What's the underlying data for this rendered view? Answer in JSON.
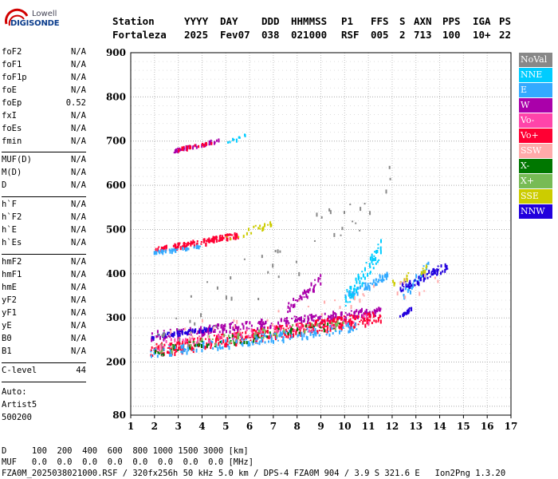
{
  "logo": {
    "line1": "Lowell",
    "line2": "DIGISONDE"
  },
  "header": {
    "labels": [
      "Station",
      "YYYY",
      "DAY",
      "DDD",
      "HHMMSS",
      "P1",
      "FFS",
      "S",
      "AXN",
      "PPS",
      "IGA",
      "PS"
    ],
    "values": [
      "Fortaleza",
      "2025",
      "Fev07",
      "038",
      "021000",
      "RSF",
      "005",
      "2",
      "713",
      "100",
      "10+",
      "22"
    ]
  },
  "params": {
    "group1": [
      {
        "k": "foF2",
        "v": "N/A"
      },
      {
        "k": "foF1",
        "v": "N/A"
      },
      {
        "k": "foF1p",
        "v": "N/A"
      },
      {
        "k": "foE",
        "v": "N/A"
      },
      {
        "k": "foEp",
        "v": "0.52"
      },
      {
        "k": "fxI",
        "v": "N/A"
      },
      {
        "k": "foEs",
        "v": "N/A"
      },
      {
        "k": "fmin",
        "v": "N/A"
      }
    ],
    "group2": [
      {
        "k": "MUF(D)",
        "v": "N/A"
      },
      {
        "k": "M(D)",
        "v": "N/A"
      },
      {
        "k": "D",
        "v": "N/A"
      }
    ],
    "group3": [
      {
        "k": "h`F",
        "v": "N/A"
      },
      {
        "k": "h`F2",
        "v": "N/A"
      },
      {
        "k": "h`E",
        "v": "N/A"
      },
      {
        "k": "h`Es",
        "v": "N/A"
      }
    ],
    "group4": [
      {
        "k": "hmF2",
        "v": "N/A"
      },
      {
        "k": "hmF1",
        "v": "N/A"
      },
      {
        "k": "hmE",
        "v": "N/A"
      },
      {
        "k": "yF2",
        "v": "N/A"
      },
      {
        "k": "yF1",
        "v": "N/A"
      },
      {
        "k": "yE",
        "v": "N/A"
      },
      {
        "k": "B0",
        "v": "N/A"
      },
      {
        "k": "B1",
        "v": "N/A"
      }
    ],
    "clevel": {
      "k": "C-level",
      "v": "44"
    }
  },
  "auto": {
    "l1": "Auto:",
    "l2": "Artist5",
    "l3": "500200"
  },
  "legend": [
    {
      "label": "NoVal",
      "color": "#888888"
    },
    {
      "label": "NNE",
      "color": "#00ccff"
    },
    {
      "label": "E",
      "color": "#33aaff"
    },
    {
      "label": "W",
      "color": "#aa00aa"
    },
    {
      "label": "Vo-",
      "color": "#ff44aa"
    },
    {
      "label": "Vo+",
      "color": "#ff0033"
    },
    {
      "label": "SSW",
      "color": "#ffaaaa"
    },
    {
      "label": "X-",
      "color": "#007700"
    },
    {
      "label": "X+",
      "color": "#77bb55"
    },
    {
      "label": "SSE",
      "color": "#cccc00"
    },
    {
      "label": "NNW",
      "color": "#2200dd"
    }
  ],
  "footer": {
    "line1": "D     100  200  400  600  800 1000 1500 3000 [km]",
    "line2": "MUF   0.0  0.0  0.0  0.0  0.0  0.0  0.0  0.0 [MHz]",
    "line3": "FZA0M_2025038021000.RSF / 320fx256h 50 kHz 5.0 km / DPS-4 FZA0M 904 / 3.9 S 321.6 E   Ion2Png 1.3.20"
  },
  "chart_data": {
    "type": "scatter",
    "title": "",
    "xlabel": "",
    "ylabel": "",
    "xlim": [
      1,
      17
    ],
    "ylim": [
      80,
      900
    ],
    "xticks": [
      1,
      2,
      3,
      4,
      5,
      6,
      7,
      8,
      9,
      10,
      11,
      12,
      13,
      14,
      15,
      16,
      17
    ],
    "yticks": [
      80,
      200,
      300,
      400,
      500,
      600,
      700,
      800,
      900
    ],
    "grid": true,
    "series": [
      {
        "name": "W",
        "color": "#aa00aa",
        "traces": [
          {
            "x0": 1.8,
            "x1": 11.5,
            "y0": 262,
            "y1": 318,
            "n": 260
          },
          {
            "x0": 2.8,
            "x1": 4.8,
            "y0": 680,
            "y1": 705,
            "n": 40
          },
          {
            "x0": 7.5,
            "x1": 9.0,
            "y0": 320,
            "y1": 390,
            "n": 40
          }
        ]
      },
      {
        "name": "Vo+",
        "color": "#ff0033",
        "traces": [
          {
            "x0": 1.8,
            "x1": 11.5,
            "y0": 228,
            "y1": 305,
            "n": 420
          },
          {
            "x0": 2.0,
            "x1": 5.5,
            "y0": 455,
            "y1": 490,
            "n": 120
          },
          {
            "x0": 2.9,
            "x1": 4.5,
            "y0": 683,
            "y1": 700,
            "n": 20
          }
        ]
      },
      {
        "name": "E",
        "color": "#33aaff",
        "traces": [
          {
            "x0": 1.8,
            "x1": 10.5,
            "y0": 222,
            "y1": 283,
            "n": 160
          },
          {
            "x0": 1.9,
            "x1": 4.0,
            "y0": 450,
            "y1": 465,
            "n": 40
          },
          {
            "x0": 10.0,
            "x1": 11.8,
            "y0": 350,
            "y1": 400,
            "n": 60
          },
          {
            "x0": 12.4,
            "x1": 13.5,
            "y0": 350,
            "y1": 420,
            "n": 40
          }
        ]
      },
      {
        "name": "NNW",
        "color": "#2200dd",
        "traces": [
          {
            "x0": 1.8,
            "x1": 4.5,
            "y0": 260,
            "y1": 280,
            "n": 60
          },
          {
            "x0": 12.3,
            "x1": 14.3,
            "y0": 370,
            "y1": 420,
            "n": 60
          },
          {
            "x0": 12.3,
            "x1": 12.8,
            "y0": 305,
            "y1": 325,
            "n": 20
          }
        ]
      },
      {
        "name": "NNE",
        "color": "#00ccff",
        "traces": [
          {
            "x0": 10.0,
            "x1": 11.5,
            "y0": 340,
            "y1": 460,
            "n": 70
          },
          {
            "x0": 5.0,
            "x1": 5.8,
            "y0": 700,
            "y1": 715,
            "n": 10
          }
        ]
      },
      {
        "name": "X-",
        "color": "#007700",
        "traces": [
          {
            "x0": 2.0,
            "x1": 10.0,
            "y0": 228,
            "y1": 290,
            "n": 60
          }
        ]
      },
      {
        "name": "X+",
        "color": "#77bb55",
        "traces": [
          {
            "x0": 2.0,
            "x1": 10.0,
            "y0": 232,
            "y1": 295,
            "n": 50
          }
        ]
      },
      {
        "name": "SSE",
        "color": "#cccc00",
        "traces": [
          {
            "x0": 5.0,
            "x1": 7.0,
            "y0": 480,
            "y1": 520,
            "n": 20
          },
          {
            "x0": 12.0,
            "x1": 13.5,
            "y0": 380,
            "y1": 420,
            "n": 15
          }
        ]
      },
      {
        "name": "Vo-",
        "color": "#ff44aa",
        "traces": [
          {
            "x0": 2.0,
            "x1": 11.0,
            "y0": 240,
            "y1": 300,
            "n": 60
          }
        ]
      },
      {
        "name": "SSW",
        "color": "#ffaaaa",
        "traces": [
          {
            "x0": 2.0,
            "x1": 14.5,
            "y0": 250,
            "y1": 400,
            "n": 40
          }
        ]
      },
      {
        "name": "NoVal",
        "color": "#888888",
        "traces": [
          {
            "x0": 2.0,
            "x1": 12.0,
            "y0": 250,
            "y1": 600,
            "n": 50
          }
        ]
      }
    ]
  }
}
